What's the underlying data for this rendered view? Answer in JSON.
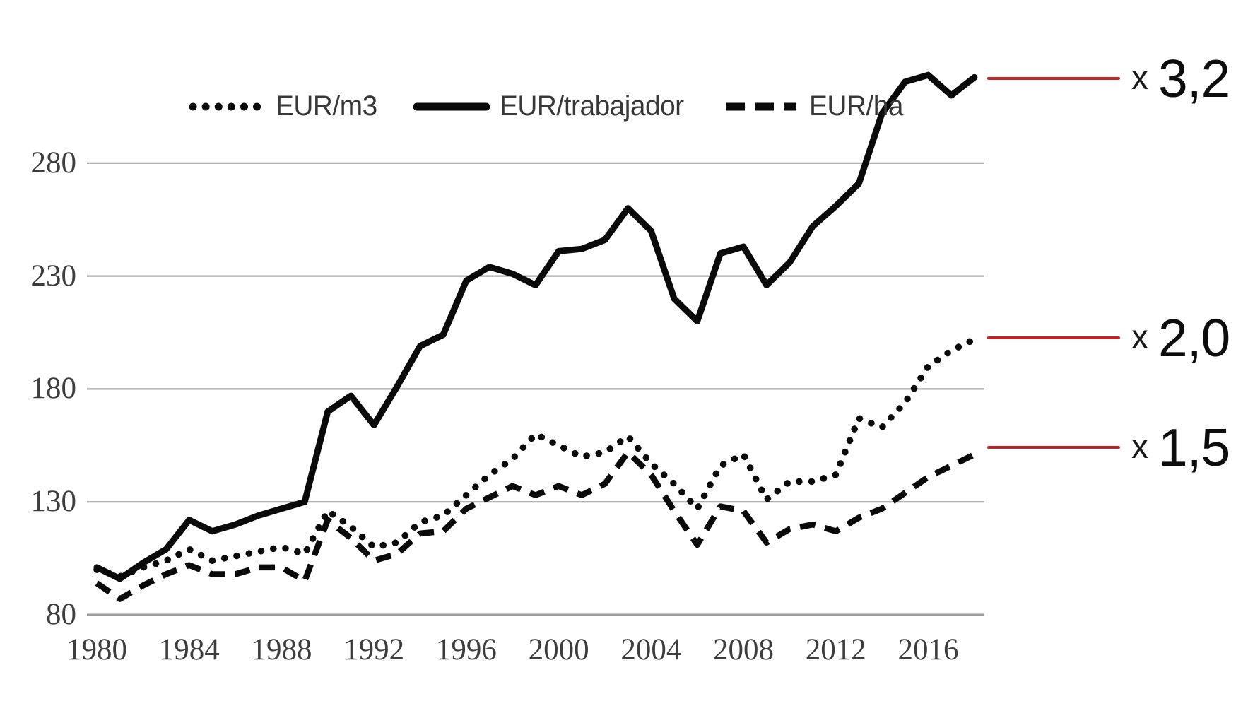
{
  "chart_data": {
    "type": "line",
    "title": "",
    "xlabel": "",
    "ylabel": "",
    "grid": true,
    "legend_position": "top",
    "y_ticks": [
      80,
      130,
      180,
      230,
      280
    ],
    "ylim": [
      80,
      330
    ],
    "x_ticks": [
      1980,
      1984,
      1988,
      1992,
      1996,
      2000,
      2004,
      2008,
      2012,
      2016
    ],
    "x": [
      1980,
      1981,
      1982,
      1983,
      1984,
      1985,
      1986,
      1987,
      1988,
      1989,
      1990,
      1991,
      1992,
      1993,
      1994,
      1995,
      1996,
      1997,
      1998,
      1999,
      2000,
      2001,
      2002,
      2003,
      2004,
      2005,
      2006,
      2007,
      2008,
      2009,
      2010,
      2011,
      2012,
      2013,
      2014,
      2015,
      2016,
      2017,
      2018
    ],
    "series": [
      {
        "name": "EUR/m3",
        "style": "dotted",
        "color": "#0a0a0a",
        "values": [
          100,
          97,
          101,
          104,
          109,
          104,
          106,
          108,
          110,
          107,
          126,
          119,
          110,
          112,
          121,
          124,
          133,
          142,
          149,
          160,
          155,
          150,
          152,
          159,
          147,
          138,
          127,
          146,
          151,
          131,
          139,
          139,
          142,
          167,
          163,
          174,
          190,
          197,
          202
        ]
      },
      {
        "name": "EUR/trabajador",
        "style": "solid",
        "color": "#0a0a0a",
        "values": [
          101,
          96,
          103,
          109,
          122,
          117,
          120,
          124,
          127,
          130,
          170,
          177,
          164,
          181,
          199,
          204,
          228,
          234,
          231,
          226,
          241,
          242,
          246,
          260,
          250,
          220,
          210,
          240,
          243,
          226,
          236,
          252,
          261,
          271,
          302,
          316,
          319,
          310,
          318
        ]
      },
      {
        "name": "EUR/ha",
        "style": "dashed",
        "color": "#0a0a0a",
        "values": [
          94,
          87,
          93,
          98,
          102,
          98,
          98,
          101,
          101,
          95,
          122,
          114,
          104,
          107,
          116,
          117,
          127,
          132,
          137,
          133,
          137,
          133,
          138,
          152,
          142,
          126,
          111,
          128,
          126,
          112,
          118,
          120,
          117,
          123,
          127,
          134,
          141,
          146,
          151
        ]
      }
    ],
    "annotations": [
      {
        "prefix": "x",
        "label": "3,2",
        "at_value": 317.5,
        "line_color": "#c02323"
      },
      {
        "prefix": "x",
        "label": "2,0",
        "at_value": 202.8,
        "line_color": "#c02323"
      },
      {
        "prefix": "x",
        "label": "1,5",
        "at_value": 154.2,
        "line_color": "#c02323"
      }
    ],
    "colors": {
      "gridline": "#a8a8a8",
      "baseline": "#9c9c9c",
      "series": "#0a0a0a",
      "annotation_red": "#c02323",
      "tick_text": "#3d3d3d"
    }
  }
}
